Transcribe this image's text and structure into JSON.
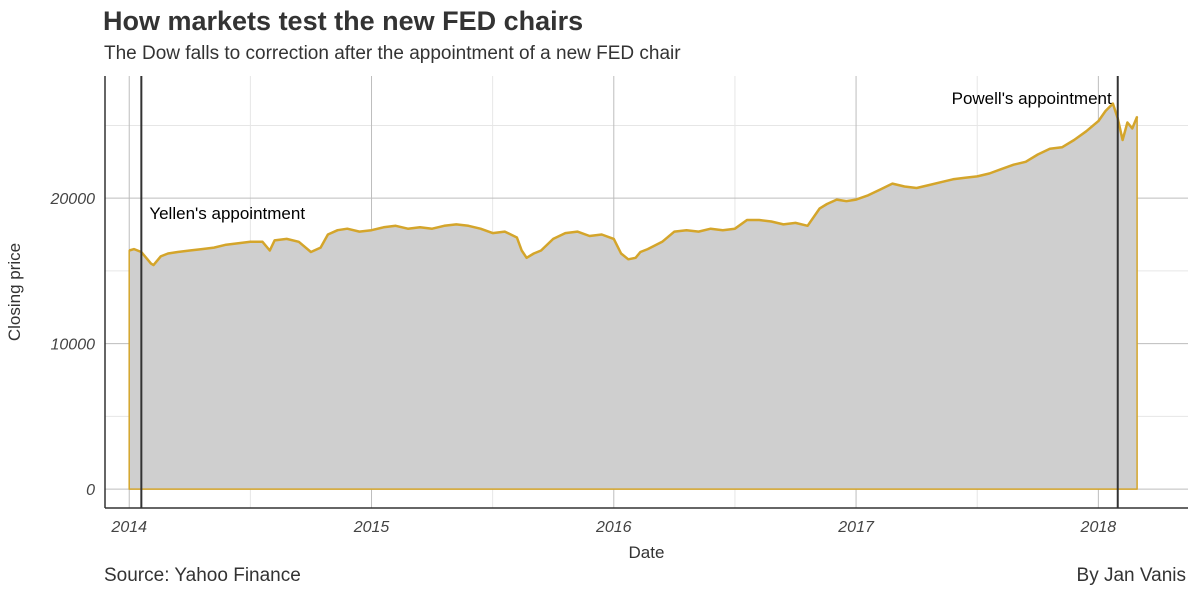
{
  "header": {
    "title": "How markets test the new FED chairs",
    "subtitle": "The Dow falls to correction after the appointment of a new FED chair"
  },
  "footer": {
    "source": "Source: Yahoo Finance",
    "author": "By Jan Vanis"
  },
  "colors": {
    "line": "#d4a52b",
    "area": "#cfcfcf",
    "vline": "#333333",
    "major_grid": "#bdbdbd",
    "minor_grid": "#e6e6e6"
  },
  "chart_data": {
    "type": "area",
    "xlabel": "Date",
    "ylabel": "Closing price",
    "x_ticks": [
      2014,
      2015,
      2016,
      2017,
      2018
    ],
    "y_ticks": [
      0,
      10000,
      20000
    ],
    "xlim": [
      2013.9,
      2018.37
    ],
    "ylim": [
      -1300,
      28400
    ],
    "grid": true,
    "series": [
      {
        "x": [
          2014.0,
          2014.02,
          2014.05,
          2014.07,
          2014.09,
          2014.1,
          2014.13,
          2014.16,
          2014.2,
          2014.25,
          2014.3,
          2014.35,
          2014.4,
          2014.45,
          2014.5,
          2014.55,
          2014.58,
          2014.6,
          2014.65,
          2014.7,
          2014.75,
          2014.79,
          2014.82,
          2014.86,
          2014.9,
          2014.95,
          2015.0,
          2015.05,
          2015.1,
          2015.15,
          2015.2,
          2015.25,
          2015.3,
          2015.35,
          2015.4,
          2015.45,
          2015.5,
          2015.55,
          2015.6,
          2015.62,
          2015.64,
          2015.67,
          2015.7,
          2015.75,
          2015.8,
          2015.85,
          2015.9,
          2015.95,
          2016.0,
          2016.03,
          2016.06,
          2016.09,
          2016.11,
          2016.14,
          2016.2,
          2016.25,
          2016.3,
          2016.35,
          2016.4,
          2016.45,
          2016.5,
          2016.55,
          2016.6,
          2016.65,
          2016.7,
          2016.75,
          2016.8,
          2016.85,
          2016.88,
          2016.92,
          2016.96,
          2017.0,
          2017.05,
          2017.1,
          2017.15,
          2017.2,
          2017.25,
          2017.3,
          2017.35,
          2017.4,
          2017.45,
          2017.5,
          2017.55,
          2017.6,
          2017.65,
          2017.7,
          2017.75,
          2017.8,
          2017.85,
          2017.9,
          2017.95,
          2018.0,
          2018.03,
          2018.06,
          2018.08,
          2018.1,
          2018.12,
          2018.14,
          2018.16
        ],
        "y": [
          16400,
          16500,
          16300,
          15900,
          15500,
          15400,
          16000,
          16200,
          16300,
          16400,
          16500,
          16600,
          16800,
          16900,
          17000,
          17000,
          16400,
          17100,
          17200,
          17000,
          16300,
          16600,
          17500,
          17800,
          17900,
          17700,
          17800,
          18000,
          18100,
          17900,
          18000,
          17900,
          18100,
          18200,
          18100,
          17900,
          17600,
          17700,
          17300,
          16400,
          15900,
          16200,
          16400,
          17200,
          17600,
          17700,
          17400,
          17500,
          17200,
          16200,
          15800,
          15900,
          16300,
          16500,
          17000,
          17700,
          17800,
          17700,
          17900,
          17800,
          17900,
          18500,
          18500,
          18400,
          18200,
          18300,
          18100,
          19300,
          19600,
          19900,
          19800,
          19900,
          20200,
          20600,
          21000,
          20800,
          20700,
          20900,
          21100,
          21300,
          21400,
          21500,
          21700,
          22000,
          22300,
          22500,
          23000,
          23400,
          23500,
          24000,
          24600,
          25300,
          26000,
          26500,
          25500,
          24000,
          25200,
          24800,
          25600
        ]
      }
    ],
    "vlines": [
      {
        "x": 2014.05,
        "label": "Yellen's appointment"
      },
      {
        "x": 2018.08,
        "label": "Powell's appointment"
      }
    ]
  }
}
